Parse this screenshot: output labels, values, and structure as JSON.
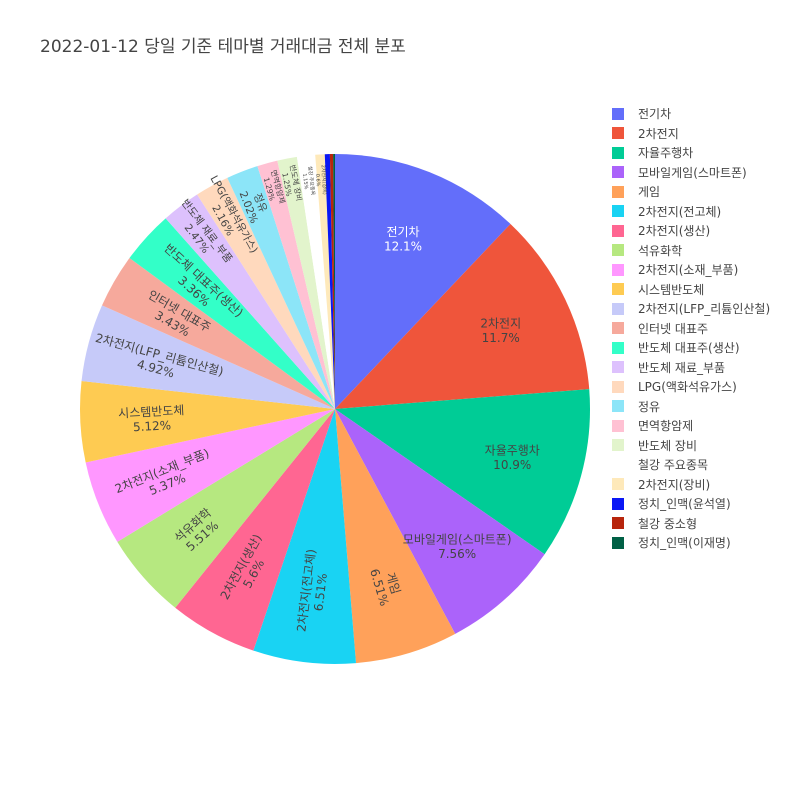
{
  "chart_data": {
    "type": "pie",
    "title": "2022-01-12 당일 기준 테마별 거래대금 전체 분포",
    "legend_position": "right",
    "sort": "descending",
    "direction": "clockwise",
    "slices": [
      {
        "label": "전기차",
        "value": 12.1,
        "pct_text": "12.1%",
        "color": "#636efa"
      },
      {
        "label": "2차전지",
        "value": 11.7,
        "pct_text": "11.7%",
        "color": "#ef553b"
      },
      {
        "label": "자율주행차",
        "value": 10.9,
        "pct_text": "10.9%",
        "color": "#00cc96"
      },
      {
        "label": "모바일게임(스마트폰)",
        "value": 7.56,
        "pct_text": "7.56%",
        "color": "#ab63fa"
      },
      {
        "label": "게임",
        "value": 6.51,
        "pct_text": "6.51%",
        "color": "#ffa15a"
      },
      {
        "label": "2차전지(전고체)",
        "value": 6.51,
        "pct_text": "6.51%",
        "color": "#19d3f3"
      },
      {
        "label": "2차전지(생산)",
        "value": 5.6,
        "pct_text": "5.6%",
        "color": "#ff6692"
      },
      {
        "label": "석유화학",
        "value": 5.51,
        "pct_text": "5.51%",
        "color": "#b6e880"
      },
      {
        "label": "2차전지(소재_부품)",
        "value": 5.37,
        "pct_text": "5.37%",
        "color": "#ff97ff"
      },
      {
        "label": "시스템반도체",
        "value": 5.12,
        "pct_text": "5.12%",
        "color": "#fecb52"
      },
      {
        "label": "2차전지(LFP_리튬인산철)",
        "value": 4.92,
        "pct_text": "4.92%",
        "color": "#c6caf9"
      },
      {
        "label": "인터넷 대표주",
        "value": 3.43,
        "pct_text": "3.43%",
        "color": "#f6a99c"
      },
      {
        "label": "반도체 대표주(생산)",
        "value": 3.36,
        "pct_text": "3.36%",
        "color": "#33ffc8"
      },
      {
        "label": "반도체 재료_부품",
        "value": 2.47,
        "pct_text": "2.47%",
        "color": "#ddc1fd"
      },
      {
        "label": "LPG(액화석유가스)",
        "value": 2.16,
        "pct_text": "2.16%",
        "color": "#ffd9bd"
      },
      {
        "label": "정유",
        "value": 2.02,
        "pct_text": "2.02%",
        "color": "#8ce5f8"
      },
      {
        "label": "면역항암제",
        "value": 1.29,
        "pct_text": "1.29%",
        "color": "#ffc1d3"
      },
      {
        "label": "반도체 장비",
        "value": 1.25,
        "pct_text": "1.25%",
        "color": "#e2f4cc"
      },
      {
        "label": "철강 주요종목",
        "value": 1.15,
        "pct_text": "1.15%",
        "color": "#ffffff"
      },
      {
        "label": "2차전지(장비)",
        "value": 0.6,
        "pct_text": "0.6%",
        "color": "#fee9ba"
      },
      {
        "label": "정치_인맥(윤석열)",
        "value": 0.32,
        "pct_text": "0.32%",
        "color": "#0a17f5"
      },
      {
        "label": "철강 중소형",
        "value": 0.2,
        "pct_text": "0.2%",
        "color": "#b7250d"
      },
      {
        "label": "정치_인맥(이재명)",
        "value": 0.12,
        "pct_text": "0.12%",
        "color": "#006045"
      }
    ]
  }
}
